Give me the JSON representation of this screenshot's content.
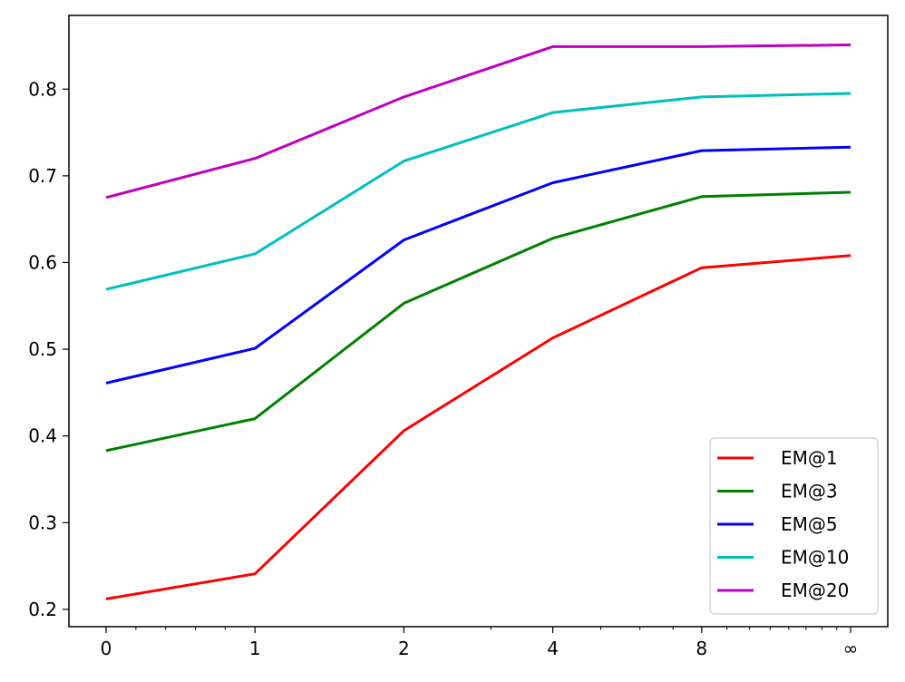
{
  "chart_data": {
    "type": "line",
    "title": "",
    "xlabel": "",
    "ylabel": "",
    "x_tick_labels": [
      "0",
      "1",
      "2",
      "4",
      "8",
      "∞"
    ],
    "x_scale": "symlog",
    "x_plot_values": [
      0,
      1,
      2,
      4,
      8,
      16
    ],
    "y_tick_labels": [
      "0.2",
      "0.3",
      "0.4",
      "0.5",
      "0.6",
      "0.7",
      "0.8"
    ],
    "y_ticks": [
      0.2,
      0.3,
      0.4,
      0.5,
      0.6,
      0.7,
      0.8
    ],
    "ylim": [
      0.18,
      0.885
    ],
    "grid": false,
    "legend_position": "lower-right",
    "series": [
      {
        "name": "EM@1",
        "color": "#ff0000",
        "values": [
          0.212,
          0.241,
          0.406,
          0.513,
          0.594,
          0.608
        ]
      },
      {
        "name": "EM@3",
        "color": "#008000",
        "values": [
          0.383,
          0.42,
          0.553,
          0.628,
          0.676,
          0.681
        ]
      },
      {
        "name": "EM@5",
        "color": "#0000ff",
        "values": [
          0.461,
          0.501,
          0.626,
          0.692,
          0.729,
          0.733
        ]
      },
      {
        "name": "EM@10",
        "color": "#00bfbf",
        "values": [
          0.569,
          0.61,
          0.717,
          0.773,
          0.791,
          0.795
        ]
      },
      {
        "name": "EM@20",
        "color": "#bf00bf",
        "values": [
          0.675,
          0.72,
          0.791,
          0.849,
          0.849,
          0.851
        ]
      }
    ]
  }
}
